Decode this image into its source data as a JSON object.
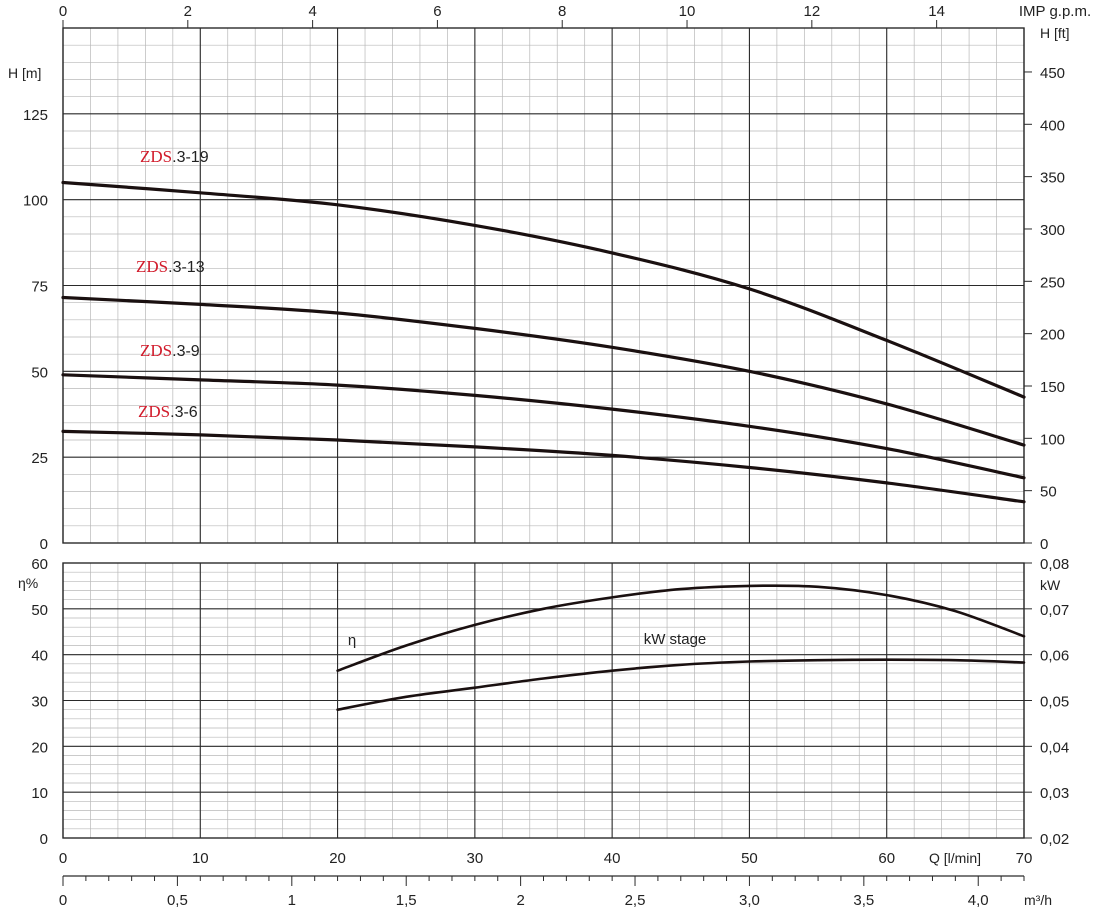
{
  "colors": {
    "grid_minor": "#b8b8b8",
    "grid_major": "#2a2a2a",
    "curve": "#1a1010",
    "zds_red": "#d11a2a"
  },
  "chart_data": [
    {
      "type": "line",
      "panel": "head",
      "x_axis": {
        "label": "Q [l/min]",
        "range": [
          0,
          70
        ],
        "ticks": [
          "0",
          "10",
          "20",
          "30",
          "40",
          "50",
          "60",
          "70"
        ]
      },
      "top_axis": {
        "label": "IMP g.p.m.",
        "range": [
          0,
          15.4
        ],
        "ticks": [
          "0",
          "2",
          "4",
          "6",
          "8",
          "10",
          "12",
          "14"
        ]
      },
      "y_axis": {
        "label": "H [m]",
        "range": [
          0,
          150
        ],
        "ticks": [
          "0",
          "25",
          "50",
          "75",
          "100",
          "125"
        ]
      },
      "y2_axis": {
        "label": "H [ft]",
        "range": [
          0,
          492
        ],
        "ticks": [
          "0",
          "50",
          "100",
          "150",
          "200",
          "250",
          "300",
          "350",
          "400",
          "450"
        ]
      },
      "grid": true,
      "series": [
        {
          "name": "ZDS.3-19",
          "prefix": "ZDS",
          "suffix": ".3-19",
          "x": [
            0,
            10,
            20,
            30,
            40,
            50,
            60,
            70
          ],
          "y": [
            105,
            102,
            98.5,
            92.5,
            84.5,
            74,
            59,
            42.5
          ]
        },
        {
          "name": "ZDS.3-13",
          "prefix": "ZDS",
          "suffix": ".3-13",
          "x": [
            0,
            10,
            20,
            30,
            40,
            50,
            60,
            70
          ],
          "y": [
            71.5,
            69.5,
            67,
            62.5,
            57,
            50,
            40.5,
            28.5
          ]
        },
        {
          "name": "ZDS.3-9",
          "prefix": "ZDS",
          "suffix": ".3-9",
          "x": [
            0,
            10,
            20,
            30,
            40,
            50,
            60,
            70
          ],
          "y": [
            49,
            47.5,
            46,
            43,
            39,
            34,
            27.5,
            19
          ]
        },
        {
          "name": "ZDS.3-6",
          "prefix": "ZDS",
          "suffix": ".3-6",
          "x": [
            0,
            10,
            20,
            30,
            40,
            50,
            60,
            70
          ],
          "y": [
            32.5,
            31.5,
            30,
            28,
            25.5,
            22,
            17.5,
            12
          ]
        }
      ]
    },
    {
      "type": "line",
      "panel": "efficiency_power",
      "x_axis": {
        "label": "Q [l/min]",
        "range": [
          0,
          70
        ],
        "ticks": [
          "0",
          "10",
          "20",
          "30",
          "40",
          "50",
          "60",
          "70"
        ]
      },
      "bottom_axis": {
        "label": "m³/h",
        "range": [
          0,
          4.2
        ],
        "ticks": [
          "0",
          "0,5",
          "1",
          "1,5",
          "2",
          "2,5",
          "3,0",
          "3,5",
          "4,0"
        ]
      },
      "y_axis": {
        "label": "η%",
        "range": [
          0,
          60
        ],
        "ticks": [
          "0",
          "10",
          "20",
          "30",
          "40",
          "50",
          "60"
        ]
      },
      "y2_axis": {
        "label": "kW",
        "range": [
          0.02,
          0.08
        ],
        "ticks": [
          "0,02",
          "0,03",
          "0,04",
          "0,05",
          "0,06",
          "0,07",
          "0,08"
        ]
      },
      "grid": true,
      "series": [
        {
          "name": "η",
          "axis": "left",
          "x": [
            20,
            25,
            30,
            35,
            40,
            45,
            50,
            55,
            60,
            65,
            70
          ],
          "y": [
            36.5,
            42,
            46.5,
            50,
            52.5,
            54.3,
            55,
            54.8,
            53,
            49.5,
            44
          ]
        },
        {
          "name": "kW stage",
          "axis": "right",
          "x": [
            20,
            25,
            30,
            35,
            40,
            45,
            50,
            55,
            60,
            65,
            70
          ],
          "y": [
            0.048,
            0.0508,
            0.0528,
            0.0548,
            0.0565,
            0.0578,
            0.0585,
            0.0588,
            0.0589,
            0.0588,
            0.0583
          ]
        }
      ]
    }
  ]
}
